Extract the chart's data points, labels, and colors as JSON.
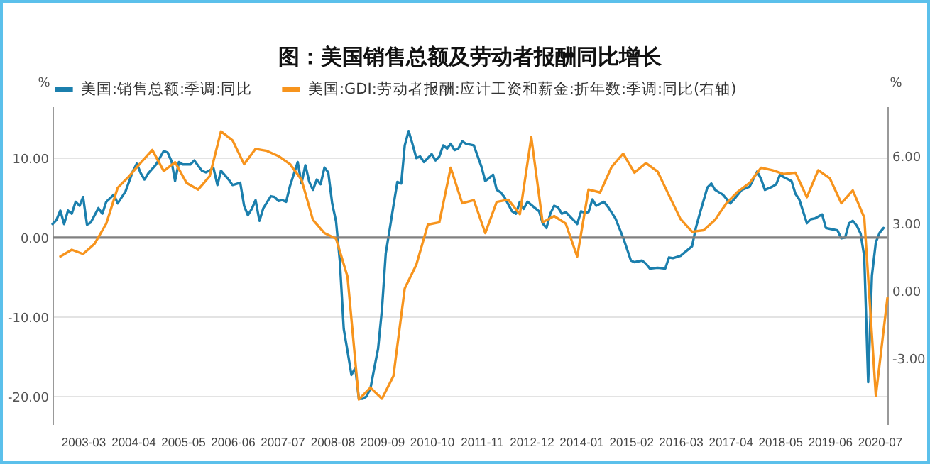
{
  "chart_data": {
    "type": "line",
    "title": "图：美国销售总额及劳动者报酬同比增长",
    "ylabel": "%",
    "y2label": "%",
    "xlim": [
      "2002-07",
      "2020-09"
    ],
    "xticks": [
      "2003-03",
      "2004-04",
      "2005-05",
      "2006-06",
      "2007-07",
      "2008-08",
      "2009-09",
      "2010-10",
      "2011-11",
      "2012-12",
      "2014-01",
      "2015-02",
      "2016-03",
      "2017-04",
      "2018-05",
      "2019-06",
      "2020-07"
    ],
    "ylim": [
      -23.5,
      16.5
    ],
    "yticks": [
      {
        "value": -20,
        "label": "-20.00"
      },
      {
        "value": -10,
        "label": "-10.00"
      },
      {
        "value": 0,
        "label": "0.00"
      },
      {
        "value": 10,
        "label": "10.00"
      }
    ],
    "y2lim": [
      -5.94,
      8.21
    ],
    "y2ticks": [
      {
        "value": -3,
        "label": "-3.00"
      },
      {
        "value": 0,
        "label": "0.00"
      },
      {
        "value": 3,
        "label": "3.00"
      },
      {
        "value": 6,
        "label": "6.00"
      }
    ],
    "grid": "y",
    "legend": "top",
    "ref_lines": [
      {
        "axis": "y",
        "value": 0,
        "color": "#808080"
      }
    ],
    "series": [
      {
        "name": "美国:销售总额:季调:同比",
        "color": "#1b7fad",
        "axis": "y",
        "x": [
          "2002-07",
          "2002-08",
          "2002-09",
          "2002-10",
          "2002-11",
          "2002-12",
          "2003-01",
          "2003-02",
          "2003-03",
          "2003-04",
          "2003-05",
          "2003-07",
          "2003-08",
          "2003-09",
          "2003-11",
          "2003-12",
          "2004-02",
          "2004-04",
          "2004-05",
          "2004-06",
          "2004-07",
          "2004-08",
          "2004-10",
          "2004-12",
          "2005-01",
          "2005-02",
          "2005-03",
          "2005-04",
          "2005-05",
          "2005-07",
          "2005-08",
          "2005-10",
          "2005-11",
          "2006-01",
          "2006-02",
          "2006-03",
          "2006-05",
          "2006-06",
          "2006-08",
          "2006-09",
          "2006-10",
          "2006-11",
          "2006-12",
          "2007-01",
          "2007-02",
          "2007-04",
          "2007-05",
          "2007-06",
          "2007-07",
          "2007-08",
          "2007-09",
          "2007-11",
          "2007-12",
          "2008-01",
          "2008-02",
          "2008-03",
          "2008-04",
          "2008-05",
          "2008-06",
          "2008-07",
          "2008-08",
          "2008-09",
          "2008-10",
          "2008-11",
          "2008-12",
          "2009-01",
          "2009-02",
          "2009-03",
          "2009-04",
          "2009-05",
          "2009-06",
          "2009-07",
          "2009-08",
          "2009-09",
          "2009-10",
          "2009-11",
          "2009-12",
          "2010-01",
          "2010-02",
          "2010-03",
          "2010-04",
          "2010-05",
          "2010-06",
          "2010-07",
          "2010-08",
          "2010-09",
          "2010-10",
          "2010-11",
          "2010-12",
          "2011-01",
          "2011-02",
          "2011-03",
          "2011-04",
          "2011-05",
          "2011-06",
          "2011-07",
          "2011-09",
          "2011-11",
          "2011-12",
          "2012-02",
          "2012-03",
          "2012-04",
          "2012-05",
          "2012-07",
          "2012-08",
          "2012-09",
          "2012-10",
          "2012-11",
          "2013-01",
          "2013-02",
          "2013-03",
          "2013-04",
          "2013-05",
          "2013-06",
          "2013-07",
          "2013-08",
          "2013-09",
          "2013-11",
          "2013-12",
          "2014-01",
          "2014-02",
          "2014-03",
          "2014-04",
          "2014-05",
          "2014-07",
          "2014-08",
          "2014-10",
          "2014-12",
          "2015-02",
          "2015-03",
          "2015-05",
          "2015-06",
          "2015-07",
          "2015-09",
          "2015-11",
          "2015-12",
          "2016-01",
          "2016-03",
          "2016-04",
          "2016-06",
          "2016-07",
          "2016-08",
          "2016-10",
          "2016-11",
          "2016-12",
          "2017-02",
          "2017-04",
          "2017-05",
          "2017-07",
          "2017-09",
          "2017-11",
          "2017-12",
          "2018-01",
          "2018-03",
          "2018-04",
          "2018-05",
          "2018-06",
          "2018-08",
          "2018-09",
          "2018-10",
          "2018-12",
          "2019-01",
          "2019-02",
          "2019-04",
          "2019-05",
          "2019-06",
          "2019-08",
          "2019-09",
          "2019-10",
          "2019-11",
          "2019-12",
          "2020-01",
          "2020-02",
          "2020-03",
          "2020-04",
          "2020-05",
          "2020-06",
          "2020-07",
          "2020-08"
        ],
        "values": [
          1.7,
          2.2,
          3.4,
          1.7,
          3.4,
          3.0,
          4.5,
          4.0,
          5.1,
          1.6,
          1.9,
          3.7,
          3.0,
          4.5,
          5.4,
          4.3,
          5.8,
          8.4,
          9.3,
          8.1,
          7.3,
          8.1,
          9.2,
          10.9,
          10.7,
          9.6,
          7.1,
          9.5,
          9.2,
          9.2,
          9.7,
          8.4,
          8.2,
          8.7,
          6.6,
          8.4,
          7.3,
          6.6,
          6.9,
          4.0,
          2.8,
          3.6,
          4.7,
          2.1,
          3.7,
          5.2,
          5.1,
          4.6,
          4.7,
          4.5,
          6.5,
          9.5,
          6.8,
          9.1,
          7.0,
          6.0,
          7.3,
          6.7,
          8.8,
          8.2,
          4.3,
          2.0,
          -3.0,
          -11.5,
          -14.3,
          -17.3,
          -16.4,
          -20.3,
          -20.3,
          -20.0,
          -19.0,
          -16.5,
          -14.0,
          -9.0,
          -2.0,
          1.0,
          4.0,
          7.0,
          6.8,
          11.6,
          13.4,
          11.8,
          10.0,
          10.2,
          9.5,
          10.0,
          10.5,
          9.7,
          10.2,
          11.6,
          11.2,
          11.8,
          11.0,
          11.2,
          12.1,
          11.8,
          11.6,
          8.9,
          7.1,
          7.9,
          6.0,
          5.7,
          5.1,
          3.3,
          3.0,
          4.5,
          3.6,
          4.5,
          3.7,
          3.3,
          1.8,
          1.2,
          3.0,
          4.0,
          3.8,
          3.0,
          3.2,
          2.2,
          1.7,
          3.3,
          3.1,
          3.2,
          4.8,
          4.0,
          4.5,
          3.9,
          2.4,
          0.0,
          -2.9,
          -3.1,
          -2.9,
          -3.3,
          -3.9,
          -3.8,
          -3.9,
          -2.5,
          -2.6,
          -2.3,
          -1.9,
          -1.1,
          1.2,
          3.0,
          6.3,
          6.8,
          6.0,
          5.4,
          4.3,
          4.8,
          6.0,
          6.4,
          8.3,
          7.4,
          6.0,
          6.4,
          6.7,
          7.9,
          7.6,
          7.1,
          5.5,
          4.8,
          1.8,
          2.3,
          2.4,
          2.9,
          1.2,
          1.1,
          0.9,
          -0.1,
          0.0,
          1.8,
          2.1,
          1.5,
          0.5,
          -2.4,
          -18.2,
          -4.8,
          -0.6,
          0.6,
          1.2
        ]
      },
      {
        "name": "美国:GDI:劳动者报酬:应计工资和薪金:折年数:季调:同比(右轴)",
        "color": "#f7941d",
        "axis": "y2",
        "x": [
          "2002-09",
          "2002-12",
          "2003-03",
          "2003-06",
          "2003-09",
          "2003-12",
          "2004-03",
          "2004-06",
          "2004-09",
          "2004-12",
          "2005-03",
          "2005-06",
          "2005-09",
          "2005-12",
          "2006-03",
          "2006-06",
          "2006-09",
          "2006-12",
          "2007-03",
          "2007-06",
          "2007-09",
          "2007-12",
          "2008-03",
          "2008-06",
          "2008-09",
          "2008-12",
          "2009-03",
          "2009-06",
          "2009-09",
          "2009-12",
          "2010-03",
          "2010-06",
          "2010-09",
          "2010-12",
          "2011-03",
          "2011-06",
          "2011-09",
          "2011-12",
          "2012-03",
          "2012-06",
          "2012-09",
          "2012-12",
          "2013-03",
          "2013-06",
          "2013-09",
          "2013-12",
          "2014-03",
          "2014-06",
          "2014-09",
          "2014-12",
          "2015-03",
          "2015-06",
          "2015-09",
          "2015-12",
          "2016-03",
          "2016-06",
          "2016-09",
          "2016-12",
          "2017-03",
          "2017-06",
          "2017-09",
          "2017-12",
          "2018-03",
          "2018-06",
          "2018-09",
          "2018-12",
          "2019-03",
          "2019-06",
          "2019-09",
          "2019-12",
          "2020-03",
          "2020-06",
          "2020-09"
        ],
        "values": [
          1.53,
          1.83,
          1.64,
          2.1,
          2.99,
          4.59,
          5.1,
          5.7,
          6.27,
          5.33,
          5.73,
          4.8,
          4.51,
          5.1,
          7.1,
          6.7,
          5.64,
          6.32,
          6.23,
          6.0,
          5.64,
          4.95,
          3.16,
          2.57,
          2.32,
          0.63,
          -4.84,
          -4.31,
          -4.8,
          -3.79,
          0.11,
          1.16,
          2.95,
          3.05,
          5.48,
          3.9,
          4.04,
          2.57,
          3.96,
          4.06,
          3.41,
          6.84,
          3.05,
          3.33,
          2.99,
          1.52,
          4.51,
          4.38,
          5.52,
          6.11,
          5.26,
          5.69,
          5.31,
          4.25,
          3.2,
          2.63,
          2.7,
          3.16,
          3.9,
          4.42,
          4.8,
          5.48,
          5.37,
          5.2,
          5.26,
          4.17,
          5.37,
          5.01,
          3.9,
          4.47,
          3.26,
          -4.67,
          -0.32
        ]
      }
    ]
  }
}
